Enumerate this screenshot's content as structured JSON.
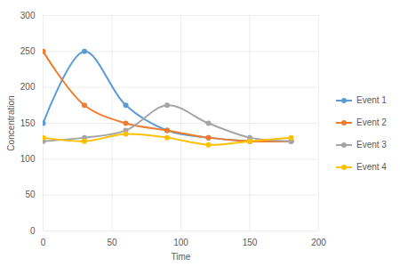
{
  "chart_data": {
    "type": "line",
    "x_label": "Time",
    "y_label": "Concentration",
    "x": [
      0,
      30,
      60,
      90,
      120,
      150,
      180
    ],
    "series": [
      {
        "name": "Event 1",
        "color": "#5b9bd5",
        "values": [
          150,
          250,
          175,
          140,
          130,
          125,
          125
        ]
      },
      {
        "name": "Event 2",
        "color": "#ed7d31",
        "values": [
          250,
          175,
          150,
          140,
          130,
          125,
          125
        ]
      },
      {
        "name": "Event 3",
        "color": "#a5a5a5",
        "values": [
          125,
          130,
          140,
          175,
          150,
          130,
          125
        ]
      },
      {
        "name": "Event 4",
        "color": "#ffc000",
        "values": [
          130,
          125,
          135,
          130,
          120,
          125,
          130
        ]
      }
    ],
    "xlim": [
      0,
      200
    ],
    "xticks": [
      0,
      50,
      100,
      150,
      200
    ],
    "ylim": [
      0,
      300
    ],
    "yticks": [
      0,
      50,
      100,
      150,
      200,
      250,
      300
    ],
    "grid": true,
    "legend": "right",
    "marker": "circle",
    "line_style": "smooth"
  }
}
